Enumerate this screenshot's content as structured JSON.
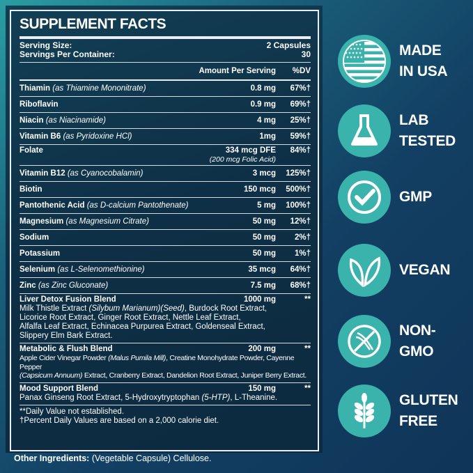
{
  "title": "SUPPLEMENT FACTS",
  "serving_size_label": "Serving Size:",
  "serving_size": "2 Capsules",
  "servings_label": "Servings Per Container:",
  "servings": "30",
  "amount_header": "Amount Per Serving",
  "dv_header": "%DV",
  "nutrients": [
    {
      "name": "Thiamin",
      "source": "(as Thiamine Mononitrate)",
      "amount": "0.8 mg",
      "dv": "67%†"
    },
    {
      "name": "Riboflavin",
      "source": "",
      "amount": "0.9 mg",
      "dv": "69%†"
    },
    {
      "name": "Niacin",
      "source": "(as Niacinamide)",
      "amount": "4 mg",
      "dv": "25%†"
    },
    {
      "name": "Vitamin B6",
      "source": "(as Pyridoxine HCl)",
      "amount": "1mg",
      "dv": "59%†"
    },
    {
      "name": "Folate",
      "source": "",
      "amount": "334 mcg DFE",
      "amount2": "(200 mcg Folic Acid)",
      "dv": "84%†"
    },
    {
      "name": "Vitamin B12",
      "source": "(as Cyanocobalamin)",
      "amount": "3 mcg",
      "dv": "125%†"
    },
    {
      "name": "Biotin",
      "source": "",
      "amount": "150 mcg",
      "dv": "500%†"
    },
    {
      "name": "Pantothenic Acid",
      "source": "(as D-calcium Pantothenate)",
      "amount": "5 mg",
      "dv": "100%†"
    },
    {
      "name": "Magnesium",
      "source": "(as Magnesium Citrate)",
      "amount": "50 mg",
      "dv": "12%†"
    },
    {
      "name": "Sodium",
      "source": "",
      "amount": "50 mg",
      "dv": "2%†"
    },
    {
      "name": "Potassium",
      "source": "",
      "amount": "50 mg",
      "dv": "1%†"
    },
    {
      "name": "Selenium",
      "source": "(as L-Selenomethionine)",
      "amount": "35 mcg",
      "dv": "64%†"
    },
    {
      "name": "Zinc",
      "source": "(as Zinc Gluconate)",
      "amount": "7.5 mg",
      "dv": "68%†"
    }
  ],
  "blends": [
    {
      "name": "Liver Detox Fusion Blend",
      "amount": "1000 mg",
      "dv": "**",
      "lines": [
        [
          "Milk Thistle Extract ",
          "(Silybum Marianum)(Seed)",
          ", Burdock Root Extract,"
        ],
        [
          "Licorice Root Extract, Ginger Root Extract, Nettle Leaf Extract,",
          "",
          ""
        ],
        [
          "Alfalfa Leaf Extract, Echinacea Purpurea Extract, Goldenseal Extract,",
          "",
          ""
        ],
        [
          "Slippery Elm Bark Extract.",
          "",
          ""
        ]
      ]
    },
    {
      "name": "Metabolic & Flush Blend",
      "amount": "200 mg",
      "dv": "**",
      "small": true,
      "lines": [
        [
          "Apple Cider Vinegar Powder ",
          "(Malus Pumila Mill)",
          ", Creatine Monohydrate Powder, Cayenne Pepper"
        ],
        [
          "",
          "(Capsicum Annuum)",
          " Extract, Cranberry Extract, Dandelion Root Extract, Juniper Berry Extract."
        ]
      ]
    },
    {
      "name": "Mood Support Blend",
      "amount": "150 mg",
      "dv": "**",
      "lines": [
        [
          "Panax Ginseng Root Extract, 5-Hydroxytryptophan ",
          "(5-HTP)",
          ", L-Theanine."
        ]
      ]
    }
  ],
  "footnotes": [
    "**Daily Value not established.",
    "†Percent Daily Values are based on a 2,000 calorie diet."
  ],
  "other_label": "Other Ingredients:",
  "other_value": " (Vegetable Capsule) Cellulose.",
  "badges": [
    {
      "icon": "usa-flag-icon",
      "l1": "MADE",
      "l2": "IN USA"
    },
    {
      "icon": "flask-icon",
      "l1": "LAB",
      "l2": "TESTED"
    },
    {
      "icon": "checkmark-icon",
      "l1": "GMP",
      "l2": ""
    },
    {
      "icon": "leaf-icon",
      "l1": "VEGAN",
      "l2": ""
    },
    {
      "icon": "dna-icon",
      "l1": "NON-",
      "l2": "GMO"
    },
    {
      "icon": "wheat-icon",
      "l1": "GLUTEN",
      "l2": "FREE"
    }
  ],
  "colors": {
    "background": "#123f63",
    "badge": "#3ab3ac",
    "panel": "#0e2f45"
  }
}
